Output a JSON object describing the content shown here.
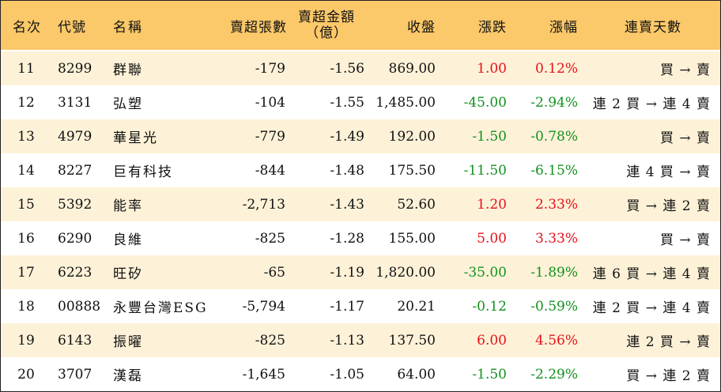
{
  "colors": {
    "header_bg": "#fbc86a",
    "odd_row_bg": "#fdf2d8",
    "up": "#e8101a",
    "down": "#12911e"
  },
  "header": {
    "rank": "名次",
    "code": "代號",
    "name": "名稱",
    "lots": "賣超張數",
    "amount_line1": "賣超金額",
    "amount_line2": "（億）",
    "close": "收盤",
    "change": "漲跌",
    "pct": "漲幅",
    "days": "連賣天數"
  },
  "rows": [
    {
      "rank": "11",
      "code": "8299",
      "name": "群聯",
      "lots": "-179",
      "amount": "-1.56",
      "close": "869.00",
      "change": "1.00",
      "pct": "0.12%",
      "days": "買 → 賣",
      "dir": "up"
    },
    {
      "rank": "12",
      "code": "3131",
      "name": "弘塑",
      "lots": "-104",
      "amount": "-1.55",
      "close": "1,485.00",
      "change": "-45.00",
      "pct": "-2.94%",
      "days": "連 2 買 → 連 4 賣",
      "dir": "down"
    },
    {
      "rank": "13",
      "code": "4979",
      "name": "華星光",
      "lots": "-779",
      "amount": "-1.49",
      "close": "192.00",
      "change": "-1.50",
      "pct": "-0.78%",
      "days": "買 → 賣",
      "dir": "down"
    },
    {
      "rank": "14",
      "code": "8227",
      "name": "巨有科技",
      "lots": "-844",
      "amount": "-1.48",
      "close": "175.50",
      "change": "-11.50",
      "pct": "-6.15%",
      "days": "連 4 買 → 賣",
      "dir": "down"
    },
    {
      "rank": "15",
      "code": "5392",
      "name": "能率",
      "lots": "-2,713",
      "amount": "-1.43",
      "close": "52.60",
      "change": "1.20",
      "pct": "2.33%",
      "days": "買 → 連 2 賣",
      "dir": "up"
    },
    {
      "rank": "16",
      "code": "6290",
      "name": "良維",
      "lots": "-825",
      "amount": "-1.28",
      "close": "155.00",
      "change": "5.00",
      "pct": "3.33%",
      "days": "買 → 賣",
      "dir": "up"
    },
    {
      "rank": "17",
      "code": "6223",
      "name": "旺矽",
      "lots": "-65",
      "amount": "-1.19",
      "close": "1,820.00",
      "change": "-35.00",
      "pct": "-1.89%",
      "days": "連 6 買 → 連 4 賣",
      "dir": "down"
    },
    {
      "rank": "18",
      "code": "00888",
      "name": "永豐台灣ESG",
      "lots": "-5,794",
      "amount": "-1.17",
      "close": "20.21",
      "change": "-0.12",
      "pct": "-0.59%",
      "days": "連 2 買 → 連 4 賣",
      "dir": "down"
    },
    {
      "rank": "19",
      "code": "6143",
      "name": "振曜",
      "lots": "-825",
      "amount": "-1.13",
      "close": "137.50",
      "change": "6.00",
      "pct": "4.56%",
      "days": "連 2 買 → 賣",
      "dir": "up"
    },
    {
      "rank": "20",
      "code": "3707",
      "name": "漢磊",
      "lots": "-1,645",
      "amount": "-1.05",
      "close": "64.00",
      "change": "-1.50",
      "pct": "-2.29%",
      "days": "買 → 連 2 賣",
      "dir": "down"
    }
  ]
}
